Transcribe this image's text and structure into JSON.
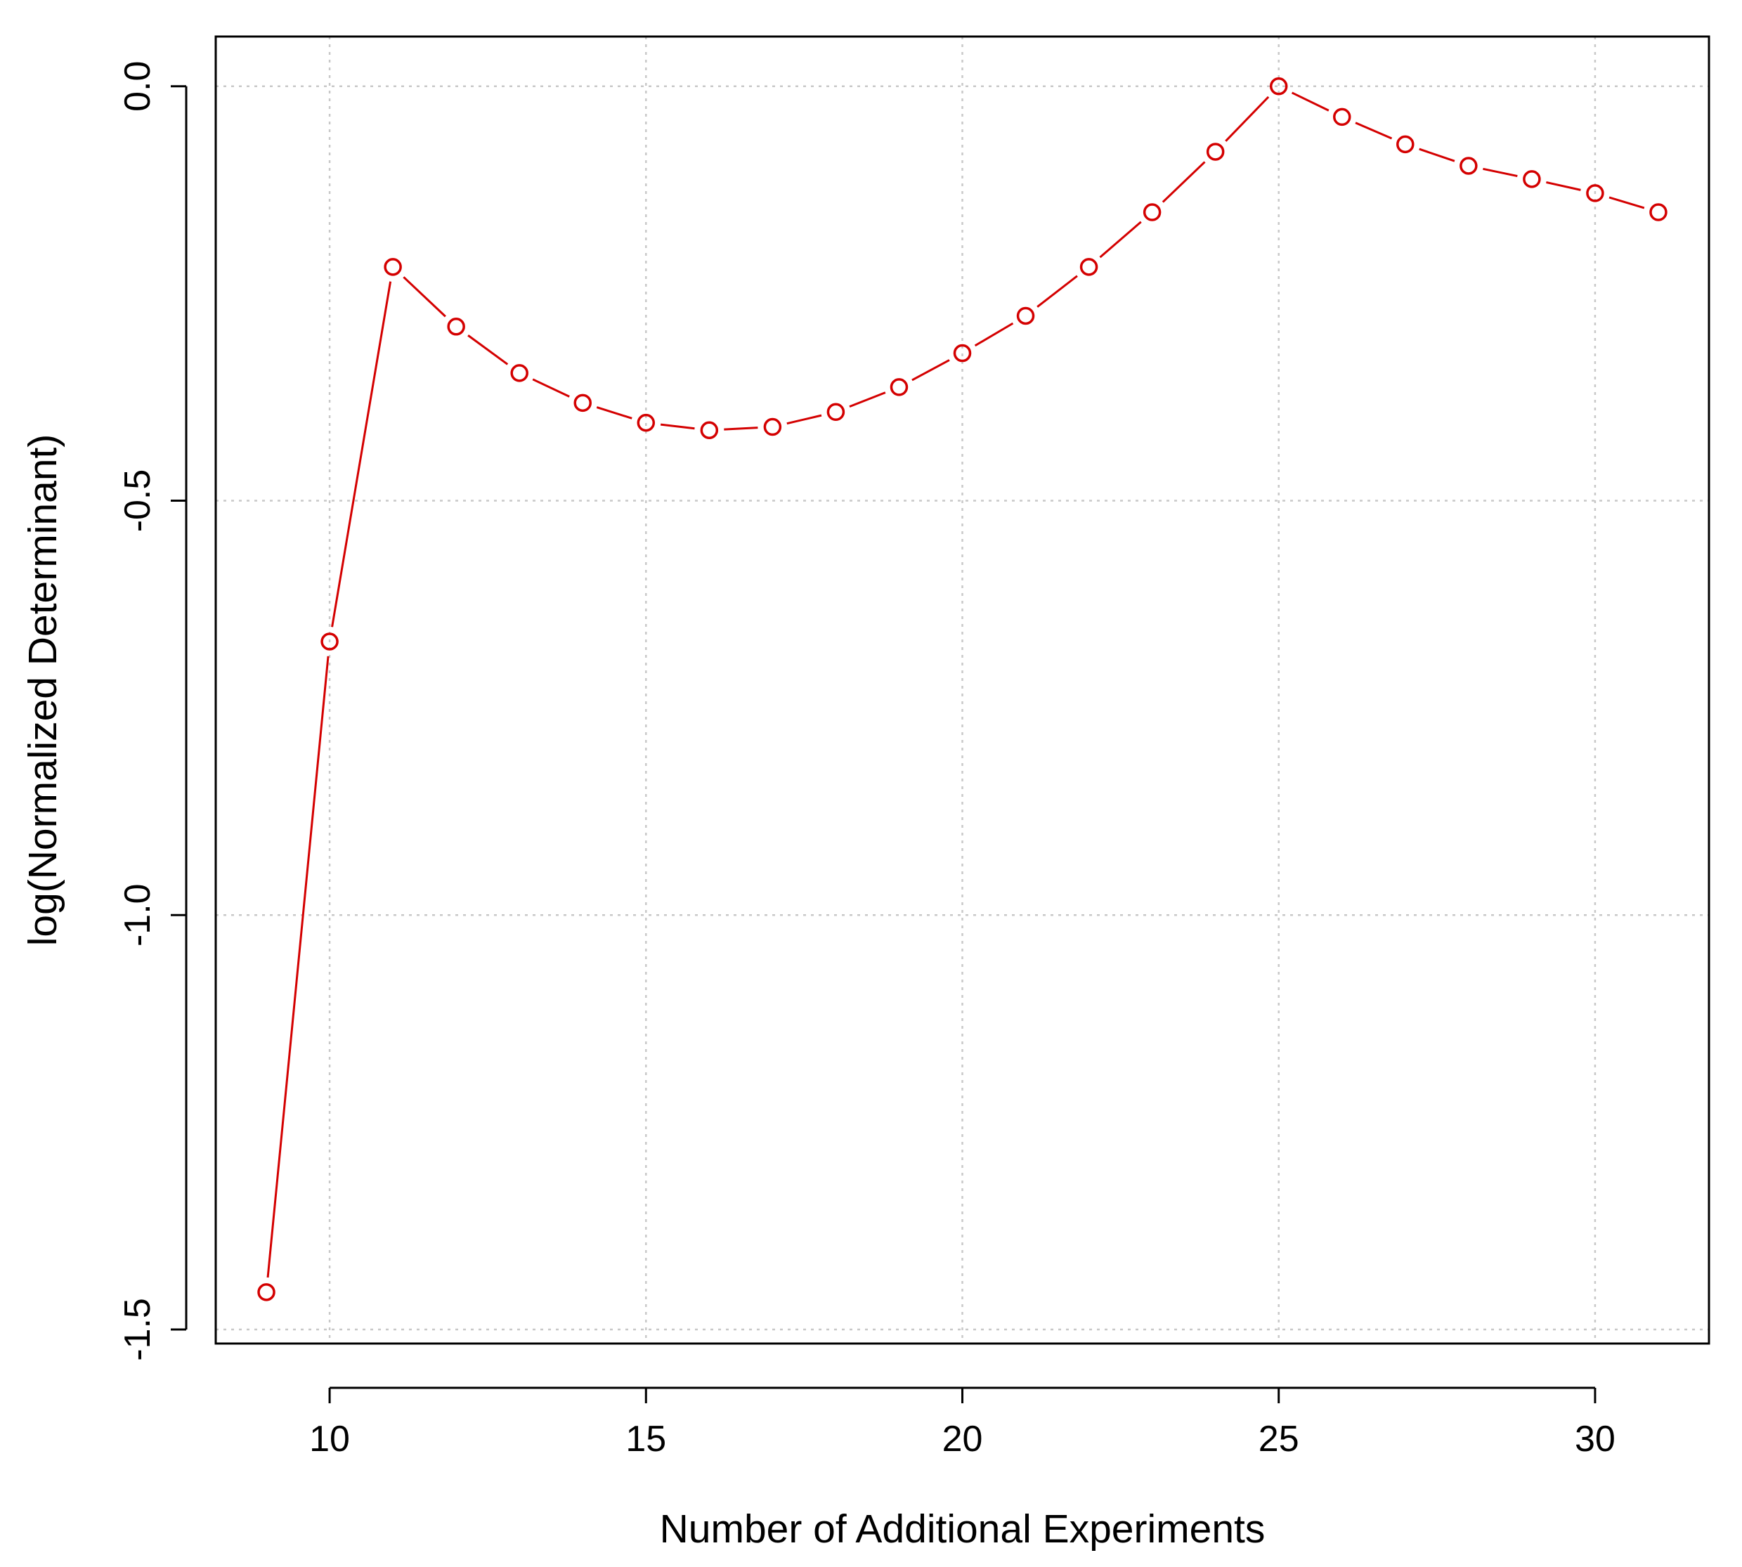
{
  "chart_data": {
    "type": "line",
    "title": "",
    "xlabel": "Number of Additional Experiments",
    "ylabel": "log(Normalized Determinant)",
    "xlim": [
      8.2,
      31.8
    ],
    "ylim": [
      -1.517,
      0.06
    ],
    "x_ticks": [
      10,
      15,
      20,
      25,
      30
    ],
    "x_tick_labels": [
      "10",
      "15",
      "20",
      "25",
      "30"
    ],
    "y_ticks": [
      -1.5,
      -1.0,
      -0.5,
      0.0
    ],
    "y_tick_labels": [
      "-1.5",
      "-1.0",
      "-0.5",
      "0.0"
    ],
    "grid": true,
    "series": [
      {
        "color": "#d40000",
        "marker": "open-circle",
        "x": [
          9,
          10,
          11,
          12,
          13,
          14,
          15,
          16,
          17,
          18,
          19,
          20,
          21,
          22,
          23,
          24,
          25,
          26,
          27,
          28,
          29,
          30,
          31
        ],
        "y": [
          -1.455,
          -0.67,
          -0.218,
          -0.29,
          -0.346,
          -0.382,
          -0.406,
          -0.415,
          -0.411,
          -0.393,
          -0.363,
          -0.322,
          -0.277,
          -0.218,
          -0.152,
          -0.079,
          0.0,
          -0.037,
          -0.07,
          -0.096,
          -0.112,
          -0.129,
          -0.152
        ]
      }
    ]
  }
}
